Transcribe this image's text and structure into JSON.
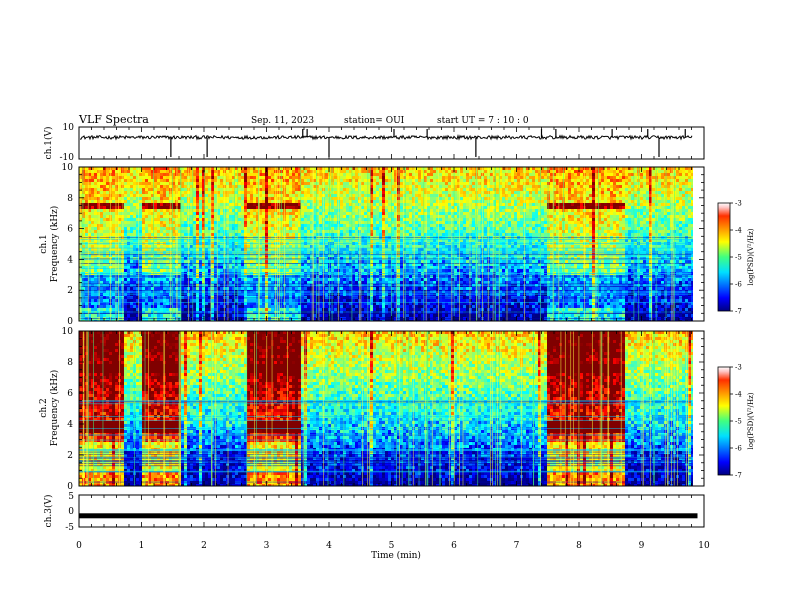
{
  "header": {
    "title": "VLF Spectra",
    "date": "Sep. 11, 2023",
    "station": "station= OUI",
    "start": "start  UT  =   7  : 10 : 0"
  },
  "chart_data": [
    {
      "type": "line",
      "name": "ch1-waveform",
      "ylabel": "ch.1(V)",
      "ylim": [
        -10,
        10
      ],
      "ytick_labels": [
        "10",
        "-10"
      ],
      "x_range": [
        0,
        10
      ],
      "baseline_level": 3.5,
      "spike_times": [
        1.47,
        2.05,
        3.58,
        3.65,
        4.0,
        5.04,
        5.57,
        6.35,
        7.4,
        7.63,
        8.53,
        9.1,
        9.28,
        9.7
      ]
    },
    {
      "type": "heatmap",
      "name": "ch1-spectrogram",
      "ylabel_line1": "ch.1",
      "ylabel_line2": "Frequency (kHz)",
      "ylim": [
        0,
        10
      ],
      "ytick_labels": [
        "0",
        "2",
        "4",
        "6",
        "8",
        "10"
      ],
      "x_range": [
        0,
        9.8
      ],
      "colorbar": {
        "label": "log(PSD)(V²/Hz)",
        "range": [
          -7,
          -3
        ],
        "tick_labels": [
          "-3",
          "-4",
          "-5",
          "-6",
          "-7"
        ]
      },
      "segments": [
        {
          "t": [
            0.0,
            0.7
          ],
          "level": "moderate"
        },
        {
          "t": [
            0.7,
            1.0
          ],
          "level": "low"
        },
        {
          "t": [
            1.0,
            1.6
          ],
          "level": "moderate"
        },
        {
          "t": [
            1.6,
            2.65
          ],
          "level": "low"
        },
        {
          "t": [
            2.65,
            3.55
          ],
          "level": "moderate"
        },
        {
          "t": [
            3.55,
            7.45
          ],
          "level": "low"
        },
        {
          "t": [
            7.45,
            8.7
          ],
          "level": "moderate"
        },
        {
          "t": [
            8.7,
            9.8
          ],
          "level": "low"
        }
      ]
    },
    {
      "type": "heatmap",
      "name": "ch2-spectrogram",
      "ylabel_line1": "ch.2",
      "ylabel_line2": "Frequency (kHz)",
      "ylim": [
        0,
        10
      ],
      "ytick_labels": [
        "0",
        "2",
        "4",
        "6",
        "8",
        "10"
      ],
      "x_range": [
        0,
        9.8
      ],
      "colorbar": {
        "label": "log(PSD)(V²/Hz)",
        "range": [
          -7,
          -3
        ],
        "tick_labels": [
          "-3",
          "-4",
          "-5",
          "-6",
          "-7"
        ]
      },
      "segments": [
        {
          "t": [
            0.0,
            0.7
          ],
          "level": "high"
        },
        {
          "t": [
            0.7,
            1.0
          ],
          "level": "low"
        },
        {
          "t": [
            1.0,
            1.6
          ],
          "level": "high"
        },
        {
          "t": [
            1.6,
            2.65
          ],
          "level": "low"
        },
        {
          "t": [
            2.65,
            3.55
          ],
          "level": "high"
        },
        {
          "t": [
            3.55,
            7.45
          ],
          "level": "low"
        },
        {
          "t": [
            7.45,
            8.7
          ],
          "level": "high"
        },
        {
          "t": [
            8.7,
            9.8
          ],
          "level": "low"
        }
      ]
    },
    {
      "type": "line",
      "name": "ch3-waveform",
      "ylabel": "ch.3(V)",
      "ylim": [
        -5,
        5
      ],
      "ytick_labels": [
        "5",
        "0",
        "-5"
      ],
      "x_range": [
        0,
        9.8
      ],
      "baseline_level": -1.5
    }
  ],
  "x_axis": {
    "label": "Time (min)",
    "range": [
      0,
      10
    ],
    "tick_labels": [
      "0",
      "1",
      "2",
      "3",
      "4",
      "5",
      "6",
      "7",
      "8",
      "9",
      "10"
    ]
  },
  "colors": {
    "jet_low": "#00008b",
    "jet_high": "#ff0000",
    "trace": "#000000"
  }
}
